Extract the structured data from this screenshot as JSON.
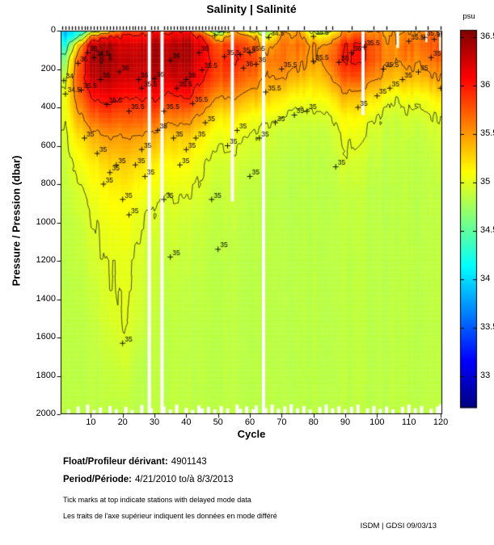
{
  "title": "Salinity | Salinité",
  "colorbar": {
    "unit": "psu",
    "tick_labels": [
      "36.5",
      "36",
      "35.5",
      "35",
      "34.5",
      "34",
      "33.5",
      "33"
    ],
    "tick_values": [
      36.5,
      36,
      35.5,
      35,
      34.5,
      34,
      33.5,
      33
    ],
    "vmin": 32.675,
    "vmax": 36.575
  },
  "axes": {
    "x_label": "Cycle",
    "x_ticks": [
      10,
      20,
      30,
      40,
      50,
      60,
      70,
      80,
      90,
      100,
      110,
      120
    ],
    "x_range": [
      1,
      120
    ],
    "y_label": "Pressure / Pression (dbar)",
    "y_ticks": [
      0,
      200,
      400,
      600,
      800,
      1000,
      1200,
      1400,
      1600,
      1800,
      2000
    ],
    "y_range": [
      0,
      2000
    ],
    "grid": false
  },
  "chart_data": {
    "type": "heatmap",
    "title": "Salinity | Salinité",
    "xlabel": "Cycle",
    "ylabel": "Pressure / Pression (dbar)",
    "units": "psu",
    "colormap": "jet",
    "value_range": [
      32.675,
      36.575
    ],
    "contour_levels": [
      34.5,
      35,
      35.5,
      36,
      36.5
    ],
    "x_cycles": [
      1,
      5,
      10,
      15,
      20,
      25,
      30,
      35,
      40,
      45,
      50,
      55,
      60,
      65,
      70,
      75,
      80,
      85,
      90,
      95,
      100,
      105,
      110,
      115,
      120
    ],
    "depths": [
      0,
      30,
      75,
      150,
      250,
      350,
      450,
      550,
      700,
      850,
      1000,
      1200,
      1500,
      1750,
      2000
    ],
    "values": [
      [
        33.9,
        34.1,
        34.6,
        35.2,
        35.8,
        35.9,
        36.0,
        35.9,
        36.0,
        35.3,
        34.4,
        35.5,
        34.9,
        34.6,
        35.5,
        35.5,
        34.8,
        35.0,
        35.5,
        35.6,
        35.5,
        35.4,
        35.5,
        35.6,
        35.5
      ],
      [
        34.0,
        34.3,
        35.6,
        35.9,
        36.0,
        36.1,
        36.2,
        36.1,
        36.2,
        35.9,
        35.2,
        35.7,
        35.6,
        35.0,
        35.6,
        35.6,
        35.2,
        35.3,
        35.7,
        35.8,
        35.6,
        35.5,
        35.6,
        35.7,
        35.6
      ],
      [
        34.2,
        35.2,
        36.3,
        36.4,
        36.2,
        36.3,
        36.4,
        36.3,
        36.4,
        36.1,
        35.8,
        35.9,
        35.8,
        35.4,
        35.7,
        35.7,
        35.5,
        35.6,
        36.0,
        36.0,
        35.7,
        35.5,
        35.7,
        35.7,
        35.7
      ],
      [
        34.6,
        35.6,
        36.4,
        36.45,
        36.3,
        36.35,
        36.4,
        36.35,
        36.4,
        36.1,
        35.9,
        36.0,
        35.9,
        35.6,
        35.7,
        35.6,
        35.5,
        35.7,
        36.05,
        36.0,
        35.7,
        35.5,
        35.6,
        35.6,
        35.7
      ],
      [
        34.9,
        35.7,
        36.3,
        36.35,
        36.2,
        36.3,
        36.3,
        36.2,
        36.3,
        36.0,
        35.8,
        35.8,
        35.7,
        35.5,
        35.5,
        35.4,
        35.3,
        35.5,
        35.8,
        35.7,
        35.5,
        35.3,
        35.4,
        35.4,
        35.5
      ],
      [
        35.0,
        35.6,
        36.0,
        36.1,
        36.0,
        36.05,
        36.0,
        35.9,
        36.0,
        35.7,
        35.5,
        35.5,
        35.4,
        35.3,
        35.2,
        35.1,
        35.1,
        35.2,
        35.4,
        35.3,
        35.2,
        35.0,
        35.1,
        35.1,
        35.2
      ],
      [
        35.0,
        35.4,
        35.7,
        35.8,
        35.75,
        35.8,
        35.7,
        35.6,
        35.6,
        35.4,
        35.2,
        35.2,
        35.1,
        35.05,
        35.0,
        34.95,
        34.95,
        35.0,
        35.15,
        35.1,
        35.0,
        34.9,
        34.95,
        34.95,
        35.0
      ],
      [
        34.95,
        35.2,
        35.4,
        35.5,
        35.5,
        35.5,
        35.4,
        35.3,
        35.3,
        35.15,
        35.05,
        35.05,
        35.0,
        34.95,
        34.9,
        34.9,
        34.9,
        34.92,
        35.05,
        35.0,
        34.92,
        34.88,
        34.9,
        34.9,
        34.95
      ],
      [
        34.9,
        35.05,
        35.15,
        35.25,
        35.3,
        35.25,
        35.15,
        35.1,
        35.1,
        35.0,
        34.95,
        34.95,
        34.92,
        34.9,
        34.88,
        34.87,
        34.87,
        34.88,
        34.95,
        34.92,
        34.88,
        34.86,
        34.87,
        34.87,
        34.9
      ],
      [
        34.88,
        34.95,
        35.05,
        35.12,
        35.15,
        35.1,
        35.02,
        35.0,
        35.0,
        34.95,
        34.9,
        34.9,
        34.88,
        34.87,
        34.86,
        34.86,
        34.86,
        34.86,
        34.89,
        34.88,
        34.86,
        34.85,
        34.86,
        34.86,
        34.87
      ],
      [
        34.87,
        34.9,
        34.98,
        35.05,
        35.08,
        35.02,
        34.95,
        34.93,
        34.92,
        34.9,
        34.88,
        34.88,
        34.87,
        34.86,
        34.86,
        34.86,
        34.86,
        34.86,
        34.87,
        34.87,
        34.86,
        34.85,
        34.86,
        34.86,
        34.86
      ],
      [
        34.86,
        34.88,
        34.93,
        35.0,
        35.02,
        34.98,
        34.9,
        34.89,
        34.88,
        34.87,
        34.86,
        34.86,
        34.86,
        34.86,
        34.86,
        34.86,
        34.86,
        34.86,
        34.86,
        34.86,
        34.86,
        34.85,
        34.86,
        34.86,
        34.86
      ],
      [
        34.86,
        34.86,
        34.88,
        34.96,
        35.01,
        34.94,
        34.87,
        34.86,
        34.86,
        34.86,
        34.86,
        34.86,
        34.86,
        34.86,
        34.86,
        34.86,
        34.86,
        34.86,
        34.86,
        34.86,
        34.86,
        34.86,
        34.86,
        34.86,
        34.86
      ],
      [
        34.86,
        34.86,
        34.86,
        34.88,
        34.93,
        34.86,
        34.86,
        34.86,
        34.86,
        34.86,
        34.86,
        34.86,
        34.86,
        34.86,
        34.86,
        34.86,
        34.86,
        34.86,
        34.86,
        34.86,
        34.86,
        34.86,
        34.86,
        34.86,
        34.86
      ],
      [
        34.86,
        34.86,
        34.86,
        34.86,
        34.86,
        34.86,
        34.86,
        34.86,
        34.86,
        34.86,
        34.86,
        34.86,
        34.86,
        34.86,
        34.86,
        34.86,
        34.86,
        34.86,
        34.86,
        34.86,
        34.86,
        34.86,
        34.86,
        34.86,
        34.86
      ]
    ],
    "missing_data_gaps": [
      {
        "c0": 27.4,
        "c1": 28.4,
        "d0": 0,
        "d1": 2000
      },
      {
        "c0": 31.4,
        "c1": 32.4,
        "d0": 0,
        "d1": 2000
      },
      {
        "c0": 53.5,
        "c1": 54.5,
        "d0": 0,
        "d1": 890
      },
      {
        "c0": 63.3,
        "c1": 64.3,
        "d0": 0,
        "d1": 2000
      },
      {
        "c0": 94.6,
        "c1": 95.6,
        "d0": 0,
        "d1": 440
      },
      {
        "c0": 105.6,
        "c1": 106.4,
        "d0": 0,
        "d1": 90
      },
      {
        "c0": 114.7,
        "c1": 115.3,
        "d0": 0,
        "d1": 60
      },
      {
        "c0": 119.0,
        "c1": 119.6,
        "d0": 0,
        "d1": 105
      }
    ],
    "shallow_profiles": [
      [
        3,
        1975
      ],
      [
        6,
        1960
      ],
      [
        9,
        1950
      ],
      [
        11,
        1978
      ],
      [
        13,
        1965
      ],
      [
        16,
        1958
      ],
      [
        18,
        1975
      ],
      [
        21,
        1962
      ],
      [
        23,
        1978
      ],
      [
        26,
        1952
      ],
      [
        29,
        1970
      ],
      [
        33,
        1960
      ],
      [
        35,
        1976
      ],
      [
        37,
        1950
      ],
      [
        40,
        1968
      ],
      [
        42,
        1978
      ],
      [
        44,
        1955
      ],
      [
        45,
        1970
      ],
      [
        47,
        1962
      ],
      [
        49,
        1975
      ],
      [
        51,
        1958
      ],
      [
        53,
        1970
      ],
      [
        56,
        1950
      ],
      [
        57,
        1972
      ],
      [
        59,
        1960
      ],
      [
        61,
        1975
      ],
      [
        62,
        1955
      ],
      [
        65,
        1968
      ],
      [
        67,
        1950
      ],
      [
        69,
        1972
      ],
      [
        71,
        1960
      ],
      [
        73,
        1948
      ],
      [
        75,
        1970
      ],
      [
        77,
        1958
      ],
      [
        79,
        1975
      ],
      [
        82,
        1962
      ],
      [
        84,
        1950
      ],
      [
        86,
        1970
      ],
      [
        88,
        1958
      ],
      [
        90,
        1975
      ],
      [
        92,
        1962
      ],
      [
        94,
        1950
      ],
      [
        97,
        1970
      ],
      [
        99,
        1958
      ],
      [
        101,
        1972
      ],
      [
        103,
        1960
      ],
      [
        105,
        1975
      ],
      [
        108,
        1962
      ],
      [
        110,
        1950
      ],
      [
        112,
        1970
      ],
      [
        114,
        1958
      ],
      [
        117,
        1972
      ],
      [
        119,
        1960
      ],
      [
        120,
        1948
      ]
    ],
    "delayed_mode_cycles": [
      1,
      2,
      3,
      4,
      5,
      6,
      7,
      8,
      9,
      10,
      11,
      12,
      13,
      14,
      15,
      16,
      17,
      18,
      19,
      20,
      21,
      22,
      23,
      24,
      25,
      26,
      27,
      29,
      30,
      31,
      33,
      34,
      35,
      36,
      37,
      38,
      39,
      40,
      41,
      42,
      43,
      44,
      45,
      46,
      47,
      48,
      49,
      50,
      51,
      52,
      53,
      55,
      58,
      60,
      62,
      65,
      69,
      72,
      77,
      84,
      86,
      92,
      99,
      103,
      112,
      116,
      120
    ],
    "contour_labels": [
      {
        "t": "34",
        "c": 1.5,
        "d": 260
      },
      {
        "t": "34.5",
        "c": 2,
        "d": 330
      },
      {
        "t": "34.5",
        "c": 11,
        "d": 140
      },
      {
        "t": "34.5",
        "c": 49,
        "d": 25
      },
      {
        "t": "34.5",
        "c": 66,
        "d": 35
      },
      {
        "t": "34.5",
        "c": 80,
        "d": 30
      },
      {
        "t": "36",
        "c": 6,
        "d": 170
      },
      {
        "t": "36",
        "c": 9,
        "d": 115
      },
      {
        "t": "36",
        "c": 13,
        "d": 255
      },
      {
        "t": "36",
        "c": 19,
        "d": 215
      },
      {
        "t": "36",
        "c": 25,
        "d": 255
      },
      {
        "t": "36",
        "c": 30,
        "d": 250
      },
      {
        "t": "36",
        "c": 35,
        "d": 155
      },
      {
        "t": "36",
        "c": 40,
        "d": 255
      },
      {
        "t": "36",
        "c": 44,
        "d": 115
      },
      {
        "t": "36",
        "c": 58,
        "d": 195
      },
      {
        "t": "36",
        "c": 62,
        "d": 175
      },
      {
        "t": "36",
        "c": 88,
        "d": 165
      },
      {
        "t": "36",
        "c": 92,
        "d": 115
      },
      {
        "t": "35.5",
        "c": 7,
        "d": 310
      },
      {
        "t": "35.5",
        "c": 15,
        "d": 385
      },
      {
        "t": "35.5",
        "c": 22,
        "d": 420
      },
      {
        "t": "35.5",
        "c": 26,
        "d": 300
      },
      {
        "t": "35.5",
        "c": 33,
        "d": 420
      },
      {
        "t": "35.5",
        "c": 37,
        "d": 300
      },
      {
        "t": "35.5",
        "c": 42,
        "d": 380
      },
      {
        "t": "35.5",
        "c": 45,
        "d": 205
      },
      {
        "t": "35.5",
        "c": 52,
        "d": 135
      },
      {
        "t": "35.5",
        "c": 57,
        "d": 125
      },
      {
        "t": "35.5",
        "c": 60,
        "d": 115
      },
      {
        "t": "35.5",
        "c": 65,
        "d": 320
      },
      {
        "t": "35.5",
        "c": 70,
        "d": 200
      },
      {
        "t": "35.5",
        "c": 80,
        "d": 160
      },
      {
        "t": "35.5",
        "c": 96,
        "d": 85
      },
      {
        "t": "35.5",
        "c": 102,
        "d": 200
      },
      {
        "t": "35.5",
        "c": 110,
        "d": 55
      },
      {
        "t": "35.5",
        "c": 115,
        "d": 35
      },
      {
        "t": "35.5",
        "c": 118,
        "d": 45
      },
      {
        "t": "35",
        "c": 8,
        "d": 560
      },
      {
        "t": "35",
        "c": 12,
        "d": 640
      },
      {
        "t": "35",
        "c": 14,
        "d": 800
      },
      {
        "t": "35",
        "c": 16,
        "d": 740
      },
      {
        "t": "35",
        "c": 18,
        "d": 700
      },
      {
        "t": "35",
        "c": 20,
        "d": 880
      },
      {
        "t": "35",
        "c": 22,
        "d": 960
      },
      {
        "t": "35",
        "c": 24,
        "d": 700
      },
      {
        "t": "35",
        "c": 26,
        "d": 620
      },
      {
        "t": "35",
        "c": 27,
        "d": 760
      },
      {
        "t": "35",
        "c": 31,
        "d": 520
      },
      {
        "t": "35",
        "c": 33,
        "d": 880
      },
      {
        "t": "35",
        "c": 35,
        "d": 1180
      },
      {
        "t": "35",
        "c": 36,
        "d": 560
      },
      {
        "t": "35",
        "c": 38,
        "d": 700
      },
      {
        "t": "35",
        "c": 40,
        "d": 620
      },
      {
        "t": "35",
        "c": 43,
        "d": 560
      },
      {
        "t": "35",
        "c": 46,
        "d": 480
      },
      {
        "t": "35",
        "c": 48,
        "d": 880
      },
      {
        "t": "35",
        "c": 50,
        "d": 1140
      },
      {
        "t": "35",
        "c": 53,
        "d": 600
      },
      {
        "t": "35",
        "c": 56,
        "d": 520
      },
      {
        "t": "35",
        "c": 60,
        "d": 760
      },
      {
        "t": "35",
        "c": 63,
        "d": 560
      },
      {
        "t": "35",
        "c": 68,
        "d": 480
      },
      {
        "t": "35",
        "c": 74,
        "d": 440
      },
      {
        "t": "35",
        "c": 78,
        "d": 420
      },
      {
        "t": "35",
        "c": 87,
        "d": 710
      },
      {
        "t": "35",
        "c": 94,
        "d": 400
      },
      {
        "t": "35",
        "c": 100,
        "d": 340
      },
      {
        "t": "35",
        "c": 104,
        "d": 300
      },
      {
        "t": "35",
        "c": 108,
        "d": 255
      },
      {
        "t": "35",
        "c": 113,
        "d": 215
      },
      {
        "t": "35",
        "c": 117,
        "d": 140
      },
      {
        "t": "35",
        "c": 120,
        "d": 300
      },
      {
        "t": "35",
        "c": 20,
        "d": 1630
      }
    ]
  },
  "footer": {
    "float_label": "Float/Profileur dérivant:",
    "float_value": "4901143",
    "period_label": "Period/Période:",
    "period_value": "4/21/2010 to/à 8/3/2013",
    "note_en": "Tick marks at top indicate stations with delayed mode data",
    "note_fr": "Les traits de l'axe supérieur indiquent les données en mode différé",
    "credit": "ISDM | GDSI  09/03/13"
  },
  "colors": {
    "background": "#ffffff",
    "axis": "#000000",
    "deep_water": "#c8f12e",
    "max_salinity": "#a00000",
    "min_salinity": "#00008f"
  }
}
